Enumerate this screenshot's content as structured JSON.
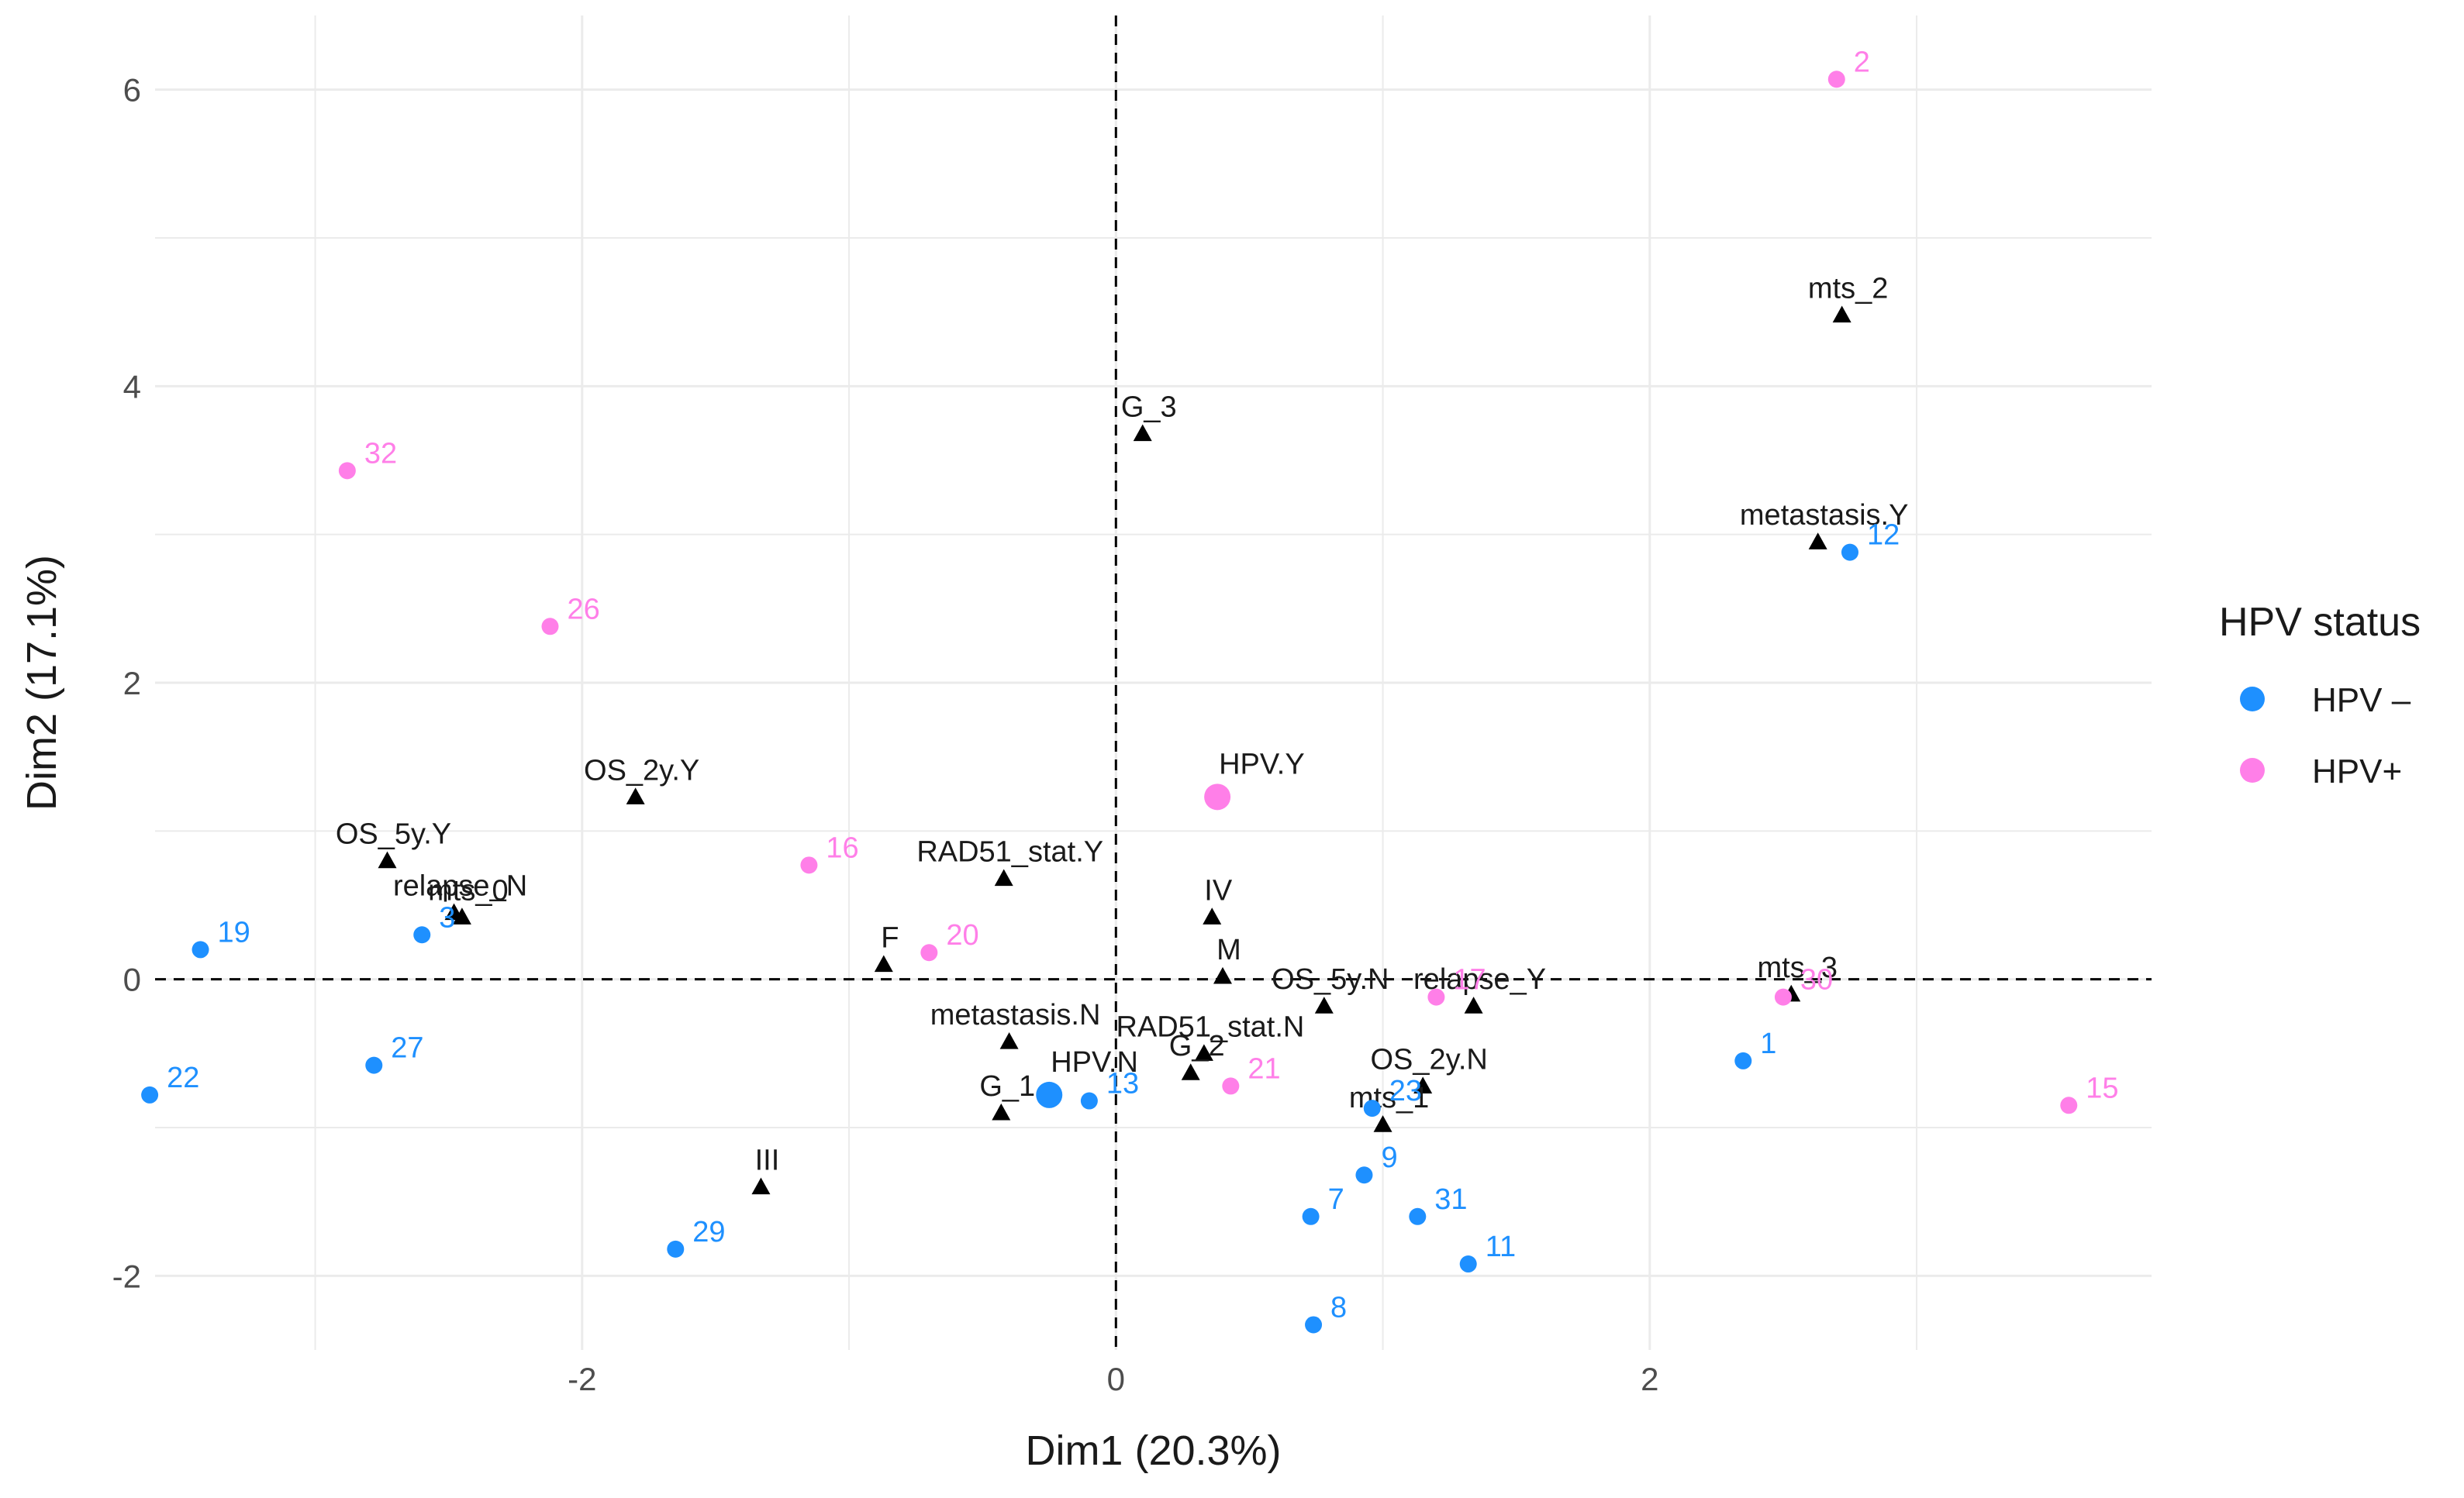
{
  "chart_data": {
    "type": "scatter",
    "title": "",
    "xlabel": "Dim1 (20.3%)",
    "ylabel": "Dim2 (17.1%)",
    "xlim": [
      -3.6,
      3.88
    ],
    "ylim": [
      -2.5,
      6.5
    ],
    "xticks": [
      -2,
      0,
      2
    ],
    "xtick_labels": [
      "-2",
      "0",
      "2"
    ],
    "yticks": [
      -2,
      0,
      2,
      4,
      6
    ],
    "ytick_labels": [
      "-2",
      "0",
      "2",
      "4",
      "6"
    ],
    "grid": true,
    "reference_lines": {
      "x": 0,
      "y": 0,
      "style": "dashed"
    },
    "legend": {
      "title": "HPV status",
      "position": "right",
      "entries": [
        {
          "label": "HPV –",
          "color": "#1e90ff"
        },
        {
          "label": "HPV+",
          "color": "#ff7fe8"
        }
      ]
    },
    "colors": {
      "hpv_neg": "#1e90ff",
      "hpv_pos": "#ff7fe8",
      "variable": "#000000"
    },
    "series": [
      {
        "name": "HPV –",
        "color": "#1e90ff",
        "points": [
          {
            "label": "1",
            "x": 2.35,
            "y": -0.55
          },
          {
            "label": "3",
            "x": -2.6,
            "y": 0.3
          },
          {
            "label": "7",
            "x": 0.73,
            "y": -1.6
          },
          {
            "label": "8",
            "x": 0.74,
            "y": -2.33
          },
          {
            "label": "9",
            "x": 0.93,
            "y": -1.32
          },
          {
            "label": "11",
            "x": 1.32,
            "y": -1.92
          },
          {
            "label": "12",
            "x": 2.75,
            "y": 2.88
          },
          {
            "label": "13",
            "x": -0.1,
            "y": -0.82
          },
          {
            "label": "19",
            "x": -3.43,
            "y": 0.2
          },
          {
            "label": "22",
            "x": -3.62,
            "y": -0.78
          },
          {
            "label": "23",
            "x": 0.96,
            "y": -0.87
          },
          {
            "label": "27",
            "x": -2.78,
            "y": -0.58
          },
          {
            "label": "29",
            "x": -1.65,
            "y": -1.82
          },
          {
            "label": "31",
            "x": 1.13,
            "y": -1.6
          }
        ]
      },
      {
        "name": "HPV+",
        "color": "#ff7fe8",
        "points": [
          {
            "label": "2",
            "x": 2.7,
            "y": 6.07
          },
          {
            "label": "15",
            "x": 3.57,
            "y": -0.85
          },
          {
            "label": "16",
            "x": -1.15,
            "y": 0.77
          },
          {
            "label": "17",
            "x": 1.2,
            "y": -0.12
          },
          {
            "label": "20",
            "x": -0.7,
            "y": 0.18
          },
          {
            "label": "21",
            "x": 0.43,
            "y": -0.72
          },
          {
            "label": "26",
            "x": -2.12,
            "y": 2.38
          },
          {
            "label": "30",
            "x": 2.5,
            "y": -0.12
          },
          {
            "label": "32",
            "x": -2.88,
            "y": 3.43
          }
        ]
      }
    ],
    "group_centroids": [
      {
        "label": "HPV.N",
        "group": "HPV –",
        "x": -0.25,
        "y": -0.78
      },
      {
        "label": "HPV.Y",
        "group": "HPV+",
        "x": 0.38,
        "y": 1.23
      }
    ],
    "variables": [
      {
        "label": "mts_2",
        "x": 2.72,
        "y": 4.48
      },
      {
        "label": "G_3",
        "x": 0.1,
        "y": 3.68
      },
      {
        "label": "metastasis.Y",
        "x": 2.63,
        "y": 2.95
      },
      {
        "label": "OS_2y.Y",
        "x": -1.8,
        "y": 1.23
      },
      {
        "label": "OS_5y.Y",
        "x": -2.73,
        "y": 0.8
      },
      {
        "label": "RAD51_stat.Y",
        "x": -0.42,
        "y": 0.68
      },
      {
        "label": "relapse_N",
        "x": -2.48,
        "y": 0.45
      },
      {
        "label": "mts_0",
        "x": -2.45,
        "y": 0.42
      },
      {
        "label": "IV",
        "x": 0.36,
        "y": 0.42
      },
      {
        "label": "F",
        "x": -0.87,
        "y": 0.1
      },
      {
        "label": "M",
        "x": 0.4,
        "y": 0.02
      },
      {
        "label": "OS_5y.N",
        "x": 0.78,
        "y": -0.18
      },
      {
        "label": "relapse_Y",
        "x": 1.34,
        "y": -0.18
      },
      {
        "label": "mts_3",
        "x": 2.53,
        "y": -0.1
      },
      {
        "label": "RAD51_stat.N",
        "x": 0.33,
        "y": -0.5
      },
      {
        "label": "metastasis.N",
        "x": -0.4,
        "y": -0.42
      },
      {
        "label": "G_2",
        "x": 0.28,
        "y": -0.63
      },
      {
        "label": "OS_2y.N",
        "x": 1.15,
        "y": -0.72
      },
      {
        "label": "G_1",
        "x": -0.43,
        "y": -0.9
      },
      {
        "label": "mts_1",
        "x": 1.0,
        "y": -0.98
      },
      {
        "label": "III",
        "x": -1.33,
        "y": -1.4
      }
    ]
  }
}
